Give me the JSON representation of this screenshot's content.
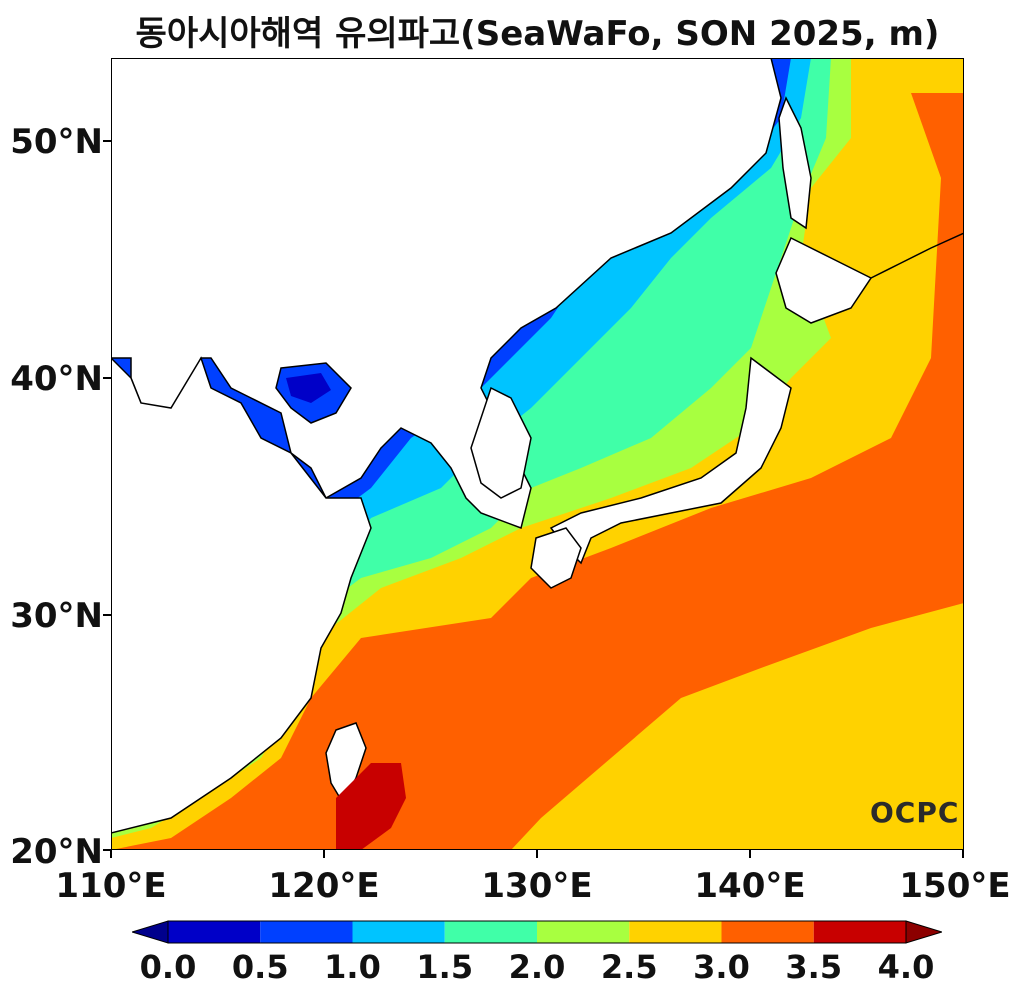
{
  "title": "동아시아해역 유의파고(SeaWaFo, SON 2025, m)",
  "logo": "OCPC",
  "y_axis": {
    "labels": [
      "50°N",
      "40°N",
      "30°N",
      "20°N"
    ],
    "values": [
      50,
      40,
      30,
      20
    ],
    "range": [
      20,
      53.4
    ]
  },
  "x_axis": {
    "labels": [
      "110°E",
      "120°E",
      "130°E",
      "140°E",
      "150°E"
    ],
    "values": [
      110,
      120,
      130,
      140,
      150
    ],
    "range": [
      110,
      150
    ]
  },
  "colorbar": {
    "labels": [
      "0.0",
      "0.5",
      "1.0",
      "1.5",
      "2.0",
      "2.5",
      "3.0",
      "3.5",
      "4.0"
    ],
    "colors": [
      "#0000c8",
      "#0040ff",
      "#00c4ff",
      "#40ffa8",
      "#a8ff40",
      "#ffd200",
      "#ff6000",
      "#c80000"
    ],
    "under_color": "#00008c",
    "over_color": "#8c0000"
  },
  "colors": {
    "land": "#ffffff",
    "coast": "#000000"
  }
}
